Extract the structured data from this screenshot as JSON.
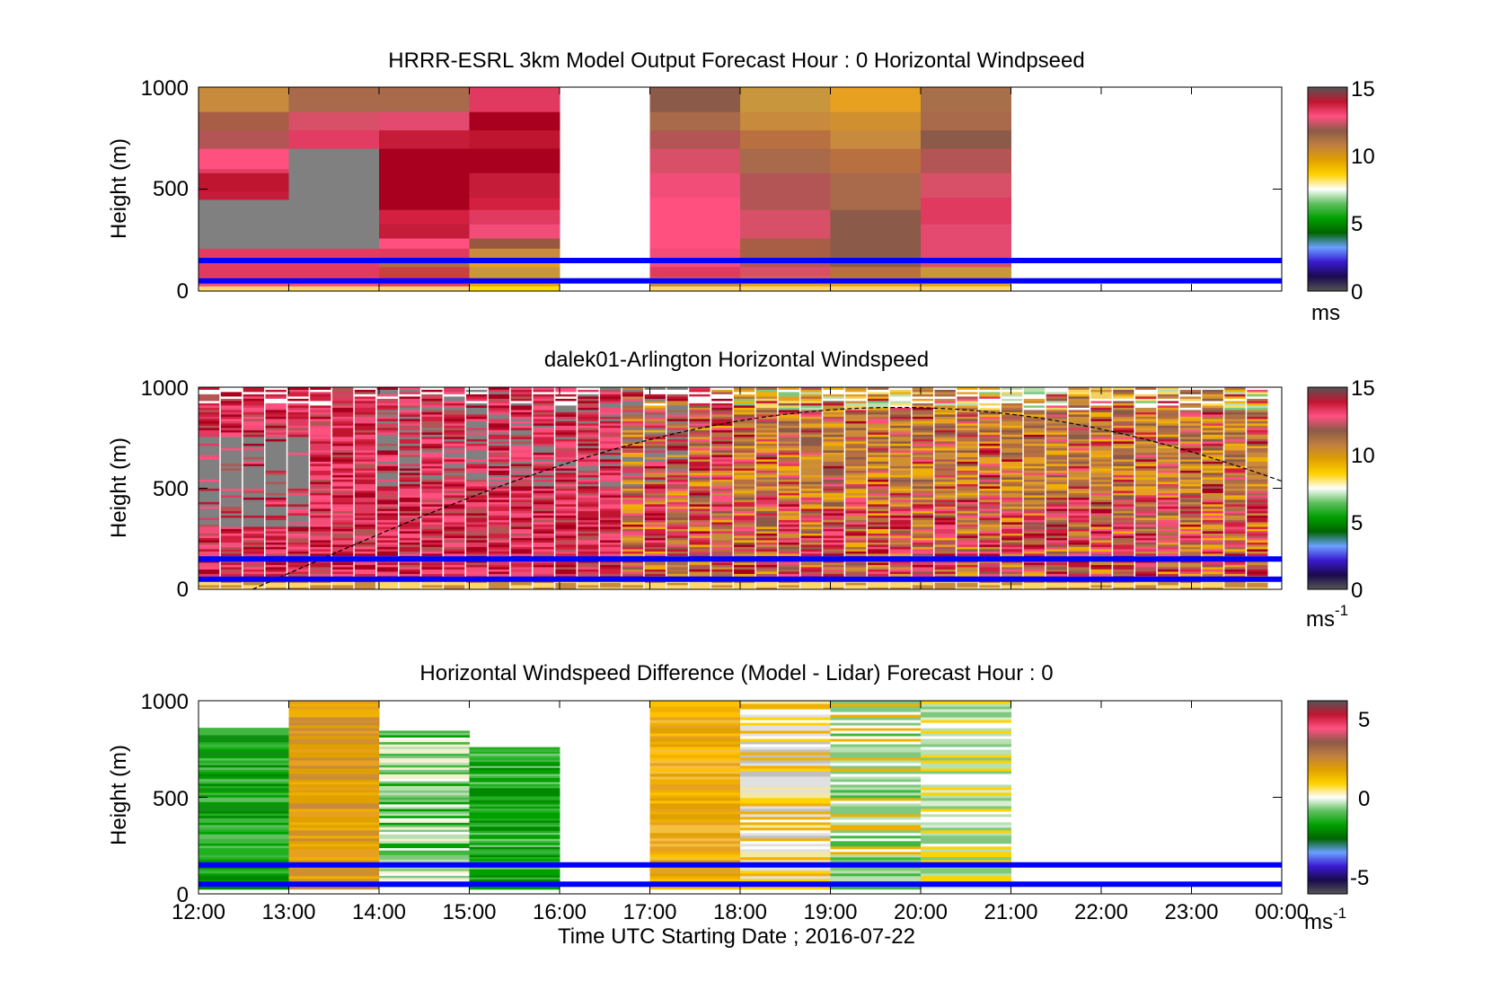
{
  "figure": {
    "xlabel": "Time UTC  Starting Date ; 2016-07-22",
    "x_ticks": [
      "12:00",
      "13:00",
      "14:00",
      "15:00",
      "16:00",
      "17:00",
      "18:00",
      "19:00",
      "20:00",
      "21:00",
      "22:00",
      "23:00",
      "00:00"
    ]
  },
  "chart_data": [
    {
      "type": "heatmap",
      "title": "HRRR-ESRL 3km Model Output   Forecast Hour : 0 Horizontal Windpseed",
      "ylabel": "Height (m)",
      "ylim": [
        0,
        1000
      ],
      "y_ticks": [
        "0",
        "500",
        "1000"
      ],
      "xlim": [
        "12:00",
        "00:00"
      ],
      "colorbar": {
        "range": [
          0,
          15
        ],
        "ticks": [
          "0",
          "5",
          "10",
          "15"
        ],
        "unit": "ms",
        "unit_sup": ""
      },
      "reference_lines_m": [
        150,
        50
      ],
      "columns": [
        {
          "start": "12:00",
          "profile": [
            [
              0,
              25,
              "#ffd76a"
            ],
            [
              25,
              70,
              "#f24d78"
            ],
            [
              70,
              120,
              "#e13a60"
            ],
            [
              120,
              210,
              "#e23c63"
            ],
            [
              210,
              450,
              "#808080"
            ],
            [
              450,
              490,
              "#c41c39"
            ],
            [
              490,
              580,
              "#c01530"
            ],
            [
              580,
              600,
              "#e23c63"
            ],
            [
              600,
              700,
              "#ff5080"
            ],
            [
              700,
              790,
              "#b45555"
            ],
            [
              790,
              880,
              "#a85e45"
            ],
            [
              880,
              1000,
              "#c88a3c"
            ]
          ]
        },
        {
          "start": "13:00",
          "profile": [
            [
              0,
              25,
              "#ffd76a"
            ],
            [
              25,
              70,
              "#f24d78"
            ],
            [
              70,
              120,
              "#e13a60"
            ],
            [
              120,
              210,
              "#e23c63"
            ],
            [
              210,
              700,
              "#808080"
            ],
            [
              700,
              790,
              "#e23c63"
            ],
            [
              790,
              880,
              "#d85068"
            ],
            [
              880,
              1000,
              "#a86a4a"
            ]
          ]
        },
        {
          "start": "14:00",
          "profile": [
            [
              0,
              25,
              "#ffd76a"
            ],
            [
              25,
              70,
              "#e13a60"
            ],
            [
              70,
              120,
              "#c84040"
            ],
            [
              120,
              160,
              "#a87040"
            ],
            [
              160,
              210,
              "#e13a60"
            ],
            [
              210,
              260,
              "#ff5080"
            ],
            [
              260,
              330,
              "#c41c39"
            ],
            [
              330,
              400,
              "#d42040"
            ],
            [
              400,
              580,
              "#a8001e"
            ],
            [
              580,
              700,
              "#a8001e"
            ],
            [
              700,
              790,
              "#c41c39"
            ],
            [
              790,
              880,
              "#e44a70"
            ],
            [
              880,
              1000,
              "#a86a4a"
            ]
          ]
        },
        {
          "start": "15:00",
          "profile": [
            [
              0,
              25,
              "#ffe100"
            ],
            [
              25,
              70,
              "#e8a020"
            ],
            [
              70,
              120,
              "#c8963c"
            ],
            [
              120,
              160,
              "#e8a020"
            ],
            [
              160,
              210,
              "#c88a3c"
            ],
            [
              210,
              260,
              "#985840"
            ],
            [
              260,
              330,
              "#f24d78"
            ],
            [
              330,
              400,
              "#e13a60"
            ],
            [
              400,
              460,
              "#d42040"
            ],
            [
              460,
              580,
              "#c41c39"
            ],
            [
              580,
              700,
              "#a8001e"
            ],
            [
              700,
              790,
              "#c01530"
            ],
            [
              790,
              880,
              "#a8001e"
            ],
            [
              880,
              1000,
              "#e13a60"
            ]
          ]
        },
        {
          "start": "17:00",
          "profile": [
            [
              0,
              25,
              "#ffd76a"
            ],
            [
              25,
              70,
              "#c88a3c"
            ],
            [
              70,
              120,
              "#e13a60"
            ],
            [
              120,
              210,
              "#f24d78"
            ],
            [
              210,
              460,
              "#ff5080"
            ],
            [
              460,
              580,
              "#f24d78"
            ],
            [
              580,
              700,
              "#d85068"
            ],
            [
              700,
              790,
              "#b45555"
            ],
            [
              790,
              880,
              "#a86a4a"
            ],
            [
              880,
              1000,
              "#8c5a48"
            ]
          ]
        },
        {
          "start": "18:00",
          "profile": [
            [
              0,
              25,
              "#ffd76a"
            ],
            [
              25,
              70,
              "#e8a020"
            ],
            [
              70,
              120,
              "#d85068"
            ],
            [
              120,
              160,
              "#b45555"
            ],
            [
              160,
              260,
              "#a85e45"
            ],
            [
              260,
              400,
              "#d85068"
            ],
            [
              400,
              580,
              "#b45555"
            ],
            [
              580,
              700,
              "#a86a4a"
            ],
            [
              700,
              790,
              "#b87040"
            ],
            [
              790,
              880,
              "#c88a3c"
            ],
            [
              880,
              1000,
              "#c8963c"
            ]
          ]
        },
        {
          "start": "19:00",
          "profile": [
            [
              0,
              25,
              "#ffd76a"
            ],
            [
              25,
              70,
              "#e8a020"
            ],
            [
              70,
              120,
              "#b87040"
            ],
            [
              120,
              210,
              "#8c5a48"
            ],
            [
              210,
              400,
              "#8c5a48"
            ],
            [
              400,
              580,
              "#a86a4a"
            ],
            [
              580,
              700,
              "#b87040"
            ],
            [
              700,
              790,
              "#c88a3c"
            ],
            [
              790,
              880,
              "#d09030"
            ],
            [
              880,
              1000,
              "#e8a020"
            ]
          ]
        },
        {
          "start": "20:00",
          "profile": [
            [
              0,
              25,
              "#ffd76a"
            ],
            [
              25,
              70,
              "#e8a020"
            ],
            [
              70,
              120,
              "#c8963c"
            ],
            [
              120,
              160,
              "#d85068"
            ],
            [
              160,
              330,
              "#e44a70"
            ],
            [
              330,
              460,
              "#e13a60"
            ],
            [
              460,
              580,
              "#d85068"
            ],
            [
              580,
              700,
              "#b45555"
            ],
            [
              700,
              790,
              "#8c5a48"
            ],
            [
              790,
              880,
              "#a86a4a"
            ],
            [
              880,
              1000,
              "#a8704a"
            ]
          ]
        }
      ]
    },
    {
      "type": "heatmap",
      "title": "dalek01-Arlington  Horizontal Windspeed",
      "ylabel": "Height (m)",
      "ylim": [
        0,
        1000
      ],
      "y_ticks": [
        "0",
        "500",
        "1000"
      ],
      "xlim": [
        "12:00",
        "00:00"
      ],
      "colorbar": {
        "range": [
          0,
          15
        ],
        "ticks": [
          "0",
          "5",
          "10",
          "15"
        ],
        "unit": "ms",
        "unit_sup": "-1"
      },
      "reference_lines_m": [
        150,
        50
      ],
      "overlay_curve_note": "dashed black arc rising from about 0 m at 12:40 to about 900 m near 19:45 and falling to about 600 m at 00:00"
    },
    {
      "type": "heatmap",
      "title": "Horizontal Windspeed Difference (Model - Lidar) Forecast Hour : 0",
      "ylabel": "Height (m)",
      "ylim": [
        0,
        1000
      ],
      "y_ticks": [
        "0",
        "500",
        "1000"
      ],
      "xlim": [
        "12:00",
        "00:00"
      ],
      "colorbar": {
        "range": [
          -6,
          6
        ],
        "ticks": [
          "-5",
          "0",
          "5"
        ],
        "unit": "ms",
        "unit_sup": "-1"
      },
      "reference_lines_m": [
        150,
        50
      ]
    }
  ],
  "colors": {
    "reference_line": "#0000ff",
    "missing": "#808080",
    "windspeed_scale": [
      "#555555",
      "#1a0a4e",
      "#3a1ad0",
      "#6aa0ff",
      "#006400",
      "#00a000",
      "#60c060",
      "#ffffff",
      "#ffd200",
      "#e0a000",
      "#c08040",
      "#8c5a48",
      "#ff5080",
      "#c01530",
      "#555555"
    ],
    "difference_scale": [
      "#555555",
      "#1a0a4e",
      "#3a1ad0",
      "#6aa0ff",
      "#006400",
      "#00a000",
      "#60c060",
      "#ffffff",
      "#ffd200",
      "#e0a000",
      "#c08040",
      "#8c5a48",
      "#ff5080",
      "#c01530",
      "#555555"
    ]
  }
}
